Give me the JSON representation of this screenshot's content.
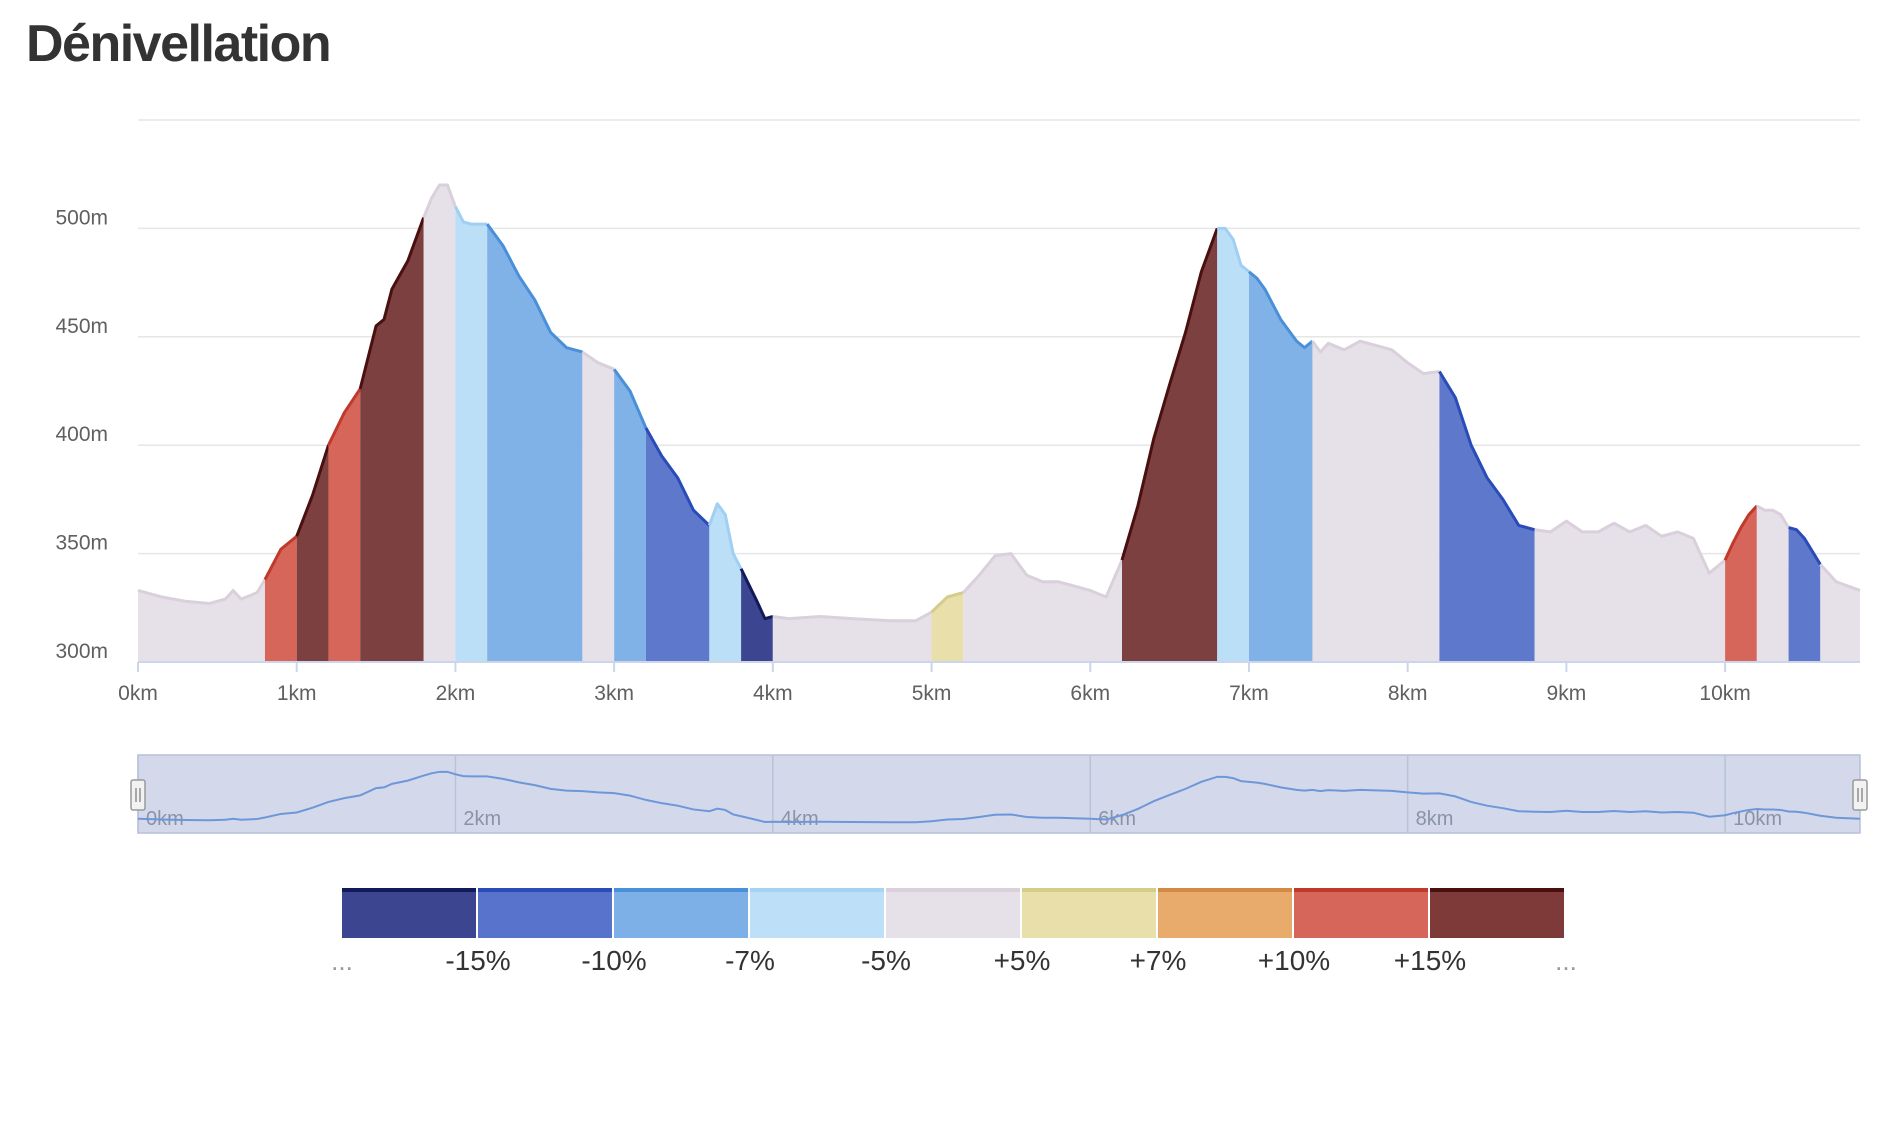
{
  "page": {
    "title": "Dénivellation"
  },
  "colors": {
    "background_fill": "#e6e0e8",
    "grid": "#e6e6e6",
    "navigator_bg": "#d3d9ea",
    "navigator_line": "#6e97d9"
  },
  "chart_data": {
    "type": "area",
    "title": "Dénivellation",
    "xlabel": "",
    "ylabel": "",
    "xlim": [
      0,
      10.85
    ],
    "ylim": [
      300,
      550
    ],
    "x_ticks": [
      {
        "value": 0,
        "label": "0km"
      },
      {
        "value": 1,
        "label": "1km"
      },
      {
        "value": 2,
        "label": "2km"
      },
      {
        "value": 3,
        "label": "3km"
      },
      {
        "value": 4,
        "label": "4km"
      },
      {
        "value": 5,
        "label": "5km"
      },
      {
        "value": 6,
        "label": "6km"
      },
      {
        "value": 7,
        "label": "7km"
      },
      {
        "value": 8,
        "label": "8km"
      },
      {
        "value": 9,
        "label": "9km"
      },
      {
        "value": 10,
        "label": "10km"
      }
    ],
    "y_ticks": [
      {
        "value": 300,
        "label": "300m"
      },
      {
        "value": 350,
        "label": "350m"
      },
      {
        "value": 400,
        "label": "400m"
      },
      {
        "value": 450,
        "label": "450m"
      },
      {
        "value": 500,
        "label": "500m"
      }
    ],
    "elevation_profile": {
      "x": [
        0,
        0.15,
        0.3,
        0.45,
        0.55,
        0.6,
        0.65,
        0.75,
        0.8,
        0.9,
        1.0,
        1.1,
        1.2,
        1.3,
        1.4,
        1.5,
        1.55,
        1.6,
        1.7,
        1.8,
        1.85,
        1.9,
        1.95,
        2.0,
        2.05,
        2.1,
        2.15,
        2.2,
        2.3,
        2.4,
        2.5,
        2.6,
        2.7,
        2.8,
        2.9,
        3.0,
        3.1,
        3.2,
        3.3,
        3.4,
        3.5,
        3.6,
        3.65,
        3.7,
        3.75,
        3.8,
        3.9,
        3.95,
        4.0,
        4.1,
        4.3,
        4.5,
        4.75,
        4.9,
        5.0,
        5.1,
        5.2,
        5.3,
        5.4,
        5.5,
        5.55,
        5.6,
        5.7,
        5.8,
        5.9,
        6.0,
        6.1,
        6.2,
        6.3,
        6.4,
        6.5,
        6.6,
        6.7,
        6.8,
        6.85,
        6.9,
        6.95,
        7.0,
        7.05,
        7.1,
        7.2,
        7.3,
        7.35,
        7.4,
        7.45,
        7.5,
        7.6,
        7.7,
        7.8,
        7.9,
        8.0,
        8.1,
        8.2,
        8.3,
        8.4,
        8.5,
        8.6,
        8.7,
        8.8,
        8.9,
        9.0,
        9.1,
        9.2,
        9.3,
        9.4,
        9.5,
        9.6,
        9.7,
        9.8,
        9.9,
        10.0,
        10.05,
        10.1,
        10.15,
        10.2,
        10.25,
        10.3,
        10.35,
        10.4,
        10.45,
        10.5,
        10.6,
        10.7,
        10.85
      ],
      "y": [
        333,
        330,
        328,
        327,
        329,
        333,
        329,
        332,
        338,
        352,
        358,
        377,
        400,
        415,
        426,
        455,
        458,
        472,
        485,
        505,
        514,
        520,
        520,
        510,
        503,
        502,
        502,
        502,
        492,
        478,
        467,
        452,
        445,
        443,
        438,
        435,
        425,
        408,
        395,
        385,
        370,
        363,
        373,
        368,
        350,
        343,
        328,
        320,
        321,
        320,
        321,
        320,
        319,
        319,
        323,
        330,
        332,
        340,
        349,
        350,
        345,
        340,
        337,
        337,
        335,
        333,
        330,
        347,
        372,
        403,
        428,
        452,
        480,
        500,
        500,
        495,
        483,
        480,
        477,
        472,
        458,
        448,
        445,
        448,
        443,
        447,
        444,
        448,
        446,
        444,
        438,
        433,
        434,
        422,
        400,
        385,
        375,
        363,
        361,
        360,
        365,
        360,
        360,
        364,
        360,
        363,
        358,
        360,
        357,
        341,
        347,
        355,
        362,
        368,
        372,
        370,
        370,
        368,
        362,
        361,
        357,
        345,
        337,
        333
      ]
    },
    "gradient_segments": [
      {
        "x_start": 0.0,
        "x_end": 0.8,
        "grade_class": "-5% to +5%"
      },
      {
        "x_start": 0.8,
        "x_end": 1.0,
        "grade_class": "+10% to +15%"
      },
      {
        "x_start": 1.0,
        "x_end": 1.2,
        "grade_class": "> +15%"
      },
      {
        "x_start": 1.2,
        "x_end": 1.4,
        "grade_class": "+10% to +15%"
      },
      {
        "x_start": 1.4,
        "x_end": 1.8,
        "grade_class": "> +15%"
      },
      {
        "x_start": 1.8,
        "x_end": 2.0,
        "grade_class": "-5% to +5%"
      },
      {
        "x_start": 2.0,
        "x_end": 2.2,
        "grade_class": "-7% to -5%"
      },
      {
        "x_start": 2.2,
        "x_end": 2.8,
        "grade_class": "-10% to -7%"
      },
      {
        "x_start": 2.8,
        "x_end": 3.0,
        "grade_class": "-5% to +5%"
      },
      {
        "x_start": 3.0,
        "x_end": 3.2,
        "grade_class": "-10% to -7%"
      },
      {
        "x_start": 3.2,
        "x_end": 3.6,
        "grade_class": "-15% to -10%"
      },
      {
        "x_start": 3.6,
        "x_end": 3.8,
        "grade_class": "-7% to -5%"
      },
      {
        "x_start": 3.8,
        "x_end": 4.0,
        "grade_class": "< -15%"
      },
      {
        "x_start": 4.0,
        "x_end": 5.0,
        "grade_class": "-5% to +5%"
      },
      {
        "x_start": 5.0,
        "x_end": 5.2,
        "grade_class": "+5% to +7%"
      },
      {
        "x_start": 5.2,
        "x_end": 6.2,
        "grade_class": "-5% to +5%"
      },
      {
        "x_start": 6.2,
        "x_end": 6.8,
        "grade_class": "> +15%"
      },
      {
        "x_start": 6.8,
        "x_end": 7.0,
        "grade_class": "-7% to -5%"
      },
      {
        "x_start": 7.0,
        "x_end": 7.4,
        "grade_class": "-10% to -7%"
      },
      {
        "x_start": 7.4,
        "x_end": 8.2,
        "grade_class": "-5% to +5%"
      },
      {
        "x_start": 8.2,
        "x_end": 8.8,
        "grade_class": "-15% to -10%"
      },
      {
        "x_start": 8.8,
        "x_end": 10.0,
        "grade_class": "-5% to +5%"
      },
      {
        "x_start": 10.0,
        "x_end": 10.2,
        "grade_class": "+10% to +15%"
      },
      {
        "x_start": 10.2,
        "x_end": 10.4,
        "grade_class": "-5% to +5%"
      },
      {
        "x_start": 10.4,
        "x_end": 10.6,
        "grade_class": "-15% to -10%"
      },
      {
        "x_start": 10.6,
        "x_end": 10.85,
        "grade_class": "-5% to +5%"
      }
    ],
    "grade_colors": {
      "< -15%": {
        "fill": "#3b4590",
        "line": "#121a5a"
      },
      "-15% to -10%": {
        "fill": "#5e78cc",
        "line": "#2a4cb8"
      },
      "-10% to -7%": {
        "fill": "#80b2e8",
        "line": "#4a90d9"
      },
      "-7% to -5%": {
        "fill": "#bcdff8",
        "line": "#9fd0f4"
      },
      "-5% to +5%": {
        "fill": "#e6e0e8",
        "line": "#d9d0db"
      },
      "+5% to +7%": {
        "fill": "#e8dfab",
        "line": "#d6cc8a"
      },
      "+7% to +10%": {
        "fill": "#e8ab6c",
        "line": "#d38a44"
      },
      "+10% to +15%": {
        "fill": "#d6655a",
        "line": "#c0392b"
      },
      "> +15%": {
        "fill": "#7d4040",
        "line": "#4a1010"
      }
    },
    "navigator": {
      "x_ticks": [
        {
          "value": 0,
          "label": "0km"
        },
        {
          "value": 2,
          "label": "2km"
        },
        {
          "value": 4,
          "label": "4km"
        },
        {
          "value": 6,
          "label": "6km"
        },
        {
          "value": 8,
          "label": "8km"
        },
        {
          "value": 10,
          "label": "10km"
        }
      ],
      "selected_range": [
        0,
        10.85
      ]
    },
    "legend": {
      "boxes": [
        {
          "fill": "#3b4590",
          "top": "#121a5a"
        },
        {
          "fill": "#5873cc",
          "top": "#2a4cb8"
        },
        {
          "fill": "#7eb0e8",
          "top": "#4a90d9"
        },
        {
          "fill": "#bde0f8",
          "top": "#a5d3f5"
        },
        {
          "fill": "#e6e0e8",
          "top": "#d9d0db"
        },
        {
          "fill": "#e8dfab",
          "top": "#d6cc8a"
        },
        {
          "fill": "#e8ab6c",
          "top": "#d38a44"
        },
        {
          "fill": "#d6655a",
          "top": "#c0392b"
        },
        {
          "fill": "#7d3a38",
          "top": "#4a1010"
        }
      ],
      "labels": [
        "...",
        "-15%",
        "-10%",
        "-7%",
        "-5%",
        "+5%",
        "+7%",
        "+10%",
        "+15%",
        "..."
      ]
    }
  }
}
